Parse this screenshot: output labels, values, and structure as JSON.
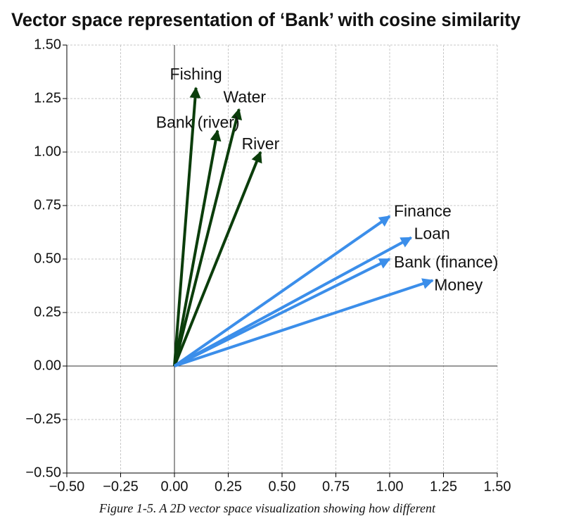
{
  "chart_data": {
    "type": "quiver",
    "title": "Vector space representation of ‘Bank’ with cosine similarity",
    "caption": "Figure 1-5. A 2D vector space visualization showing how different",
    "xlim": [
      -0.5,
      1.5
    ],
    "ylim": [
      -0.5,
      1.5
    ],
    "xticks": [
      {
        "value": -0.5,
        "label": "−0.50"
      },
      {
        "value": -0.25,
        "label": "−0.25"
      },
      {
        "value": 0,
        "label": "0.00"
      },
      {
        "value": 0.25,
        "label": "0.25"
      },
      {
        "value": 0.5,
        "label": "0.50"
      },
      {
        "value": 0.75,
        "label": "0.75"
      },
      {
        "value": 1,
        "label": "1.00"
      },
      {
        "value": 1.25,
        "label": "1.25"
      },
      {
        "value": 1.5,
        "label": "1.50"
      }
    ],
    "yticks": [
      {
        "value": -0.5,
        "label": "−0.50"
      },
      {
        "value": -0.25,
        "label": "−0.25"
      },
      {
        "value": 0,
        "label": "0.00"
      },
      {
        "value": 0.25,
        "label": "0.25"
      },
      {
        "value": 0.5,
        "label": "0.50"
      },
      {
        "value": 0.75,
        "label": "0.75"
      },
      {
        "value": 1,
        "label": "1.00"
      },
      {
        "value": 1.25,
        "label": "1.25"
      },
      {
        "value": 1.5,
        "label": "1.50"
      }
    ],
    "grid": true,
    "series": [
      {
        "name": "Fishing",
        "color": "#0b3d0b",
        "x": 0.1,
        "y": 1.3
      },
      {
        "name": "Water",
        "color": "#0b3d0b",
        "x": 0.3,
        "y": 1.2
      },
      {
        "name": "Bank (river)",
        "color": "#0b3d0b",
        "x": 0.2,
        "y": 1.1
      },
      {
        "name": "River",
        "color": "#0b3d0b",
        "x": 0.4,
        "y": 1.0
      },
      {
        "name": "Finance",
        "color": "#3b8eea",
        "x": 1.0,
        "y": 0.7
      },
      {
        "name": "Loan",
        "color": "#3b8eea",
        "x": 1.1,
        "y": 0.6
      },
      {
        "name": "Bank (finance)",
        "color": "#3b8eea",
        "x": 1.0,
        "y": 0.5
      },
      {
        "name": "Money",
        "color": "#3b8eea",
        "x": 1.2,
        "y": 0.4
      }
    ]
  }
}
